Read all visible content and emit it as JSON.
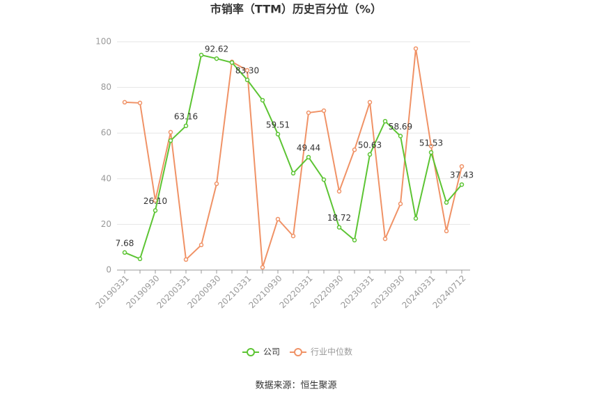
{
  "chart_data": {
    "type": "line",
    "title": "市销率（TTM）历史百分位（%）",
    "categories": [
      "20190331",
      null,
      "20190930",
      null,
      "20200331",
      null,
      "20200930",
      null,
      "20210331",
      null,
      "20210930",
      null,
      "20220331",
      null,
      "20220930",
      null,
      "20230331",
      null,
      "20230930",
      null,
      "20240331",
      null,
      "20240712"
    ],
    "series": [
      {
        "name": "公司",
        "color": "#5cc433",
        "values": [
          7.68,
          4.9,
          26.1,
          56.7,
          63.16,
          94.2,
          92.62,
          90.9,
          83.3,
          74.4,
          59.51,
          42.4,
          49.44,
          39.6,
          18.72,
          13.1,
          50.63,
          65.2,
          58.69,
          22.6,
          51.53,
          29.6,
          37.43
        ],
        "value_labels": [
          "7.68",
          null,
          "26.10",
          null,
          "63.16",
          null,
          "92.62",
          null,
          "83.30",
          null,
          "59.51",
          null,
          "49.44",
          null,
          "18.72",
          null,
          "50.63",
          null,
          "58.69",
          null,
          "51.53",
          null,
          "37.43"
        ]
      },
      {
        "name": "行业中位数",
        "color": "#f09266",
        "values": [
          73.5,
          73.2,
          30.5,
          60.4,
          4.6,
          11.0,
          37.8,
          91.2,
          87.5,
          1.2,
          22.3,
          14.9,
          68.9,
          69.8,
          34.5,
          52.7,
          73.5,
          13.7,
          29.0,
          97.0,
          54.3,
          17.1,
          45.4
        ]
      }
    ],
    "ylim": [
      0,
      100
    ],
    "yticks": [
      0,
      20,
      40,
      60,
      80,
      100
    ],
    "grid": true,
    "source": "数据来源：恒生聚源"
  }
}
